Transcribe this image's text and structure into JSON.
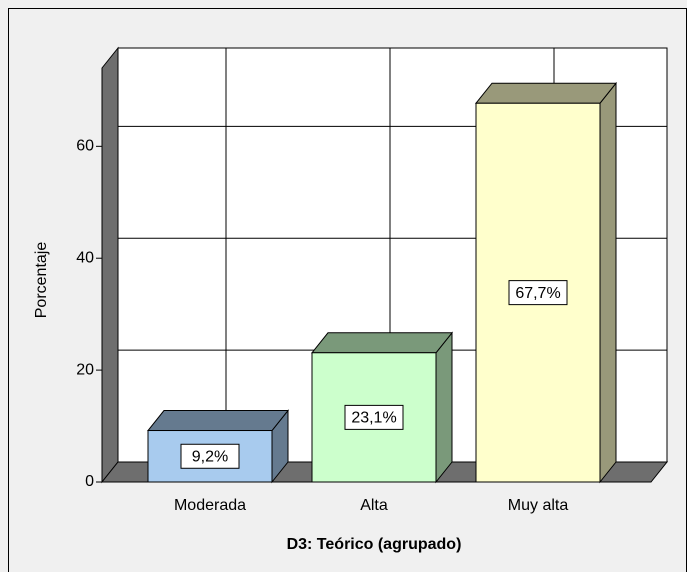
{
  "chart_data": {
    "type": "bar3d",
    "x_label": "D3: Teórico (agrupado)",
    "y_label": "Porcentaje",
    "categories": [
      "Moderada",
      "Alta",
      "Muy alta"
    ],
    "values": [
      9.2,
      23.1,
      67.7
    ],
    "value_labels": [
      "9,2%",
      "23,1%",
      "67,7%"
    ],
    "colors": [
      "#a8cbee",
      "#ccffcc",
      "#ffffcc"
    ],
    "ylim": [
      0,
      74
    ],
    "yticks": [
      0,
      20,
      40,
      60
    ],
    "grid": true
  }
}
